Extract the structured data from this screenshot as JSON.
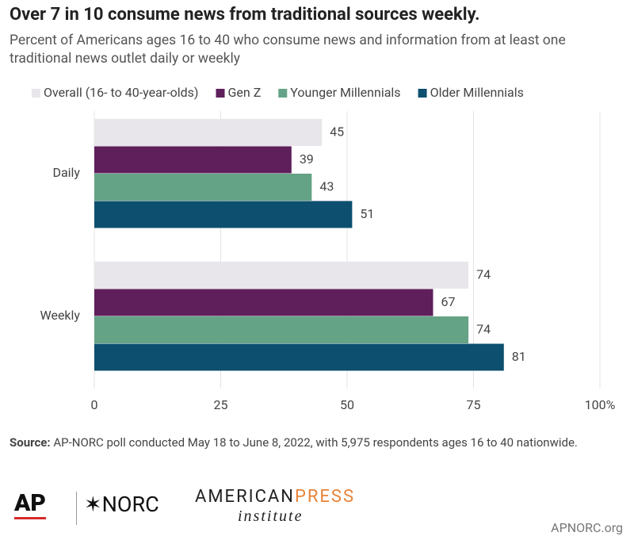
{
  "chart_data": {
    "type": "hbar",
    "title": "Over 7 in 10 consume news from traditional sources weekly.",
    "subtitle": "Percent of Americans ages 16 to 40 who consume news and information from at least one traditional news outlet daily or weekly",
    "categories": [
      "Daily",
      "Weekly"
    ],
    "series": [
      {
        "name": "Overall (16- to 40-year-olds)",
        "color": "#e8e6ea",
        "values": [
          45,
          74
        ]
      },
      {
        "name": "Gen Z",
        "color": "#5e1f5b",
        "values": [
          39,
          67
        ]
      },
      {
        "name": "Younger Millennials",
        "color": "#65a386",
        "values": [
          43,
          74
        ]
      },
      {
        "name": "Older Millennials",
        "color": "#0d4f6e",
        "values": [
          51,
          81
        ]
      }
    ],
    "xlim": [
      0,
      100
    ],
    "xticks": [
      0,
      25,
      50,
      75,
      {
        "value": 100,
        "label": "100%"
      }
    ],
    "grid": true,
    "legend": "top",
    "source_label": "Source:",
    "source": "AP-NORC poll conducted May 18 to June 8, 2022, with 5,975 respondents ages 16 to 40 nationwide."
  },
  "footer": {
    "ap": "AP",
    "norc": "✶NORC",
    "api_a": "AMERICAN",
    "api_b": "PRESS",
    "api_c": "institute",
    "site": "APNORC.org"
  }
}
